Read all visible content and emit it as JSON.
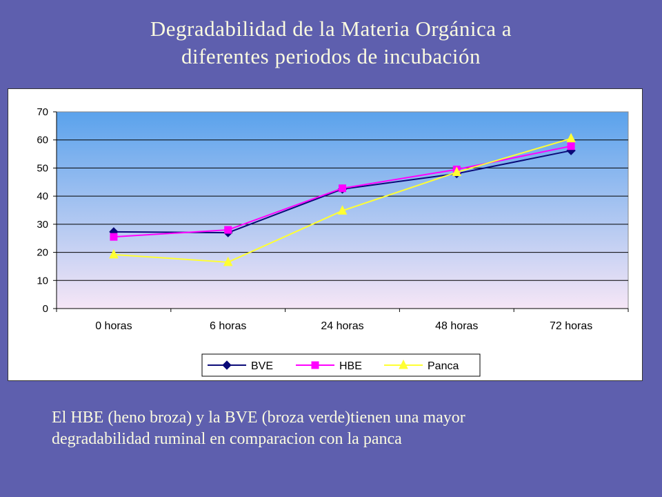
{
  "title": {
    "line1": "Degradabilidad de la Materia Orgánica a",
    "line2": "diferentes periodos de incubación"
  },
  "caption": {
    "line1": "El HBE (heno broza) y la BVE (broza verde)tienen una mayor",
    "line2": "degradabilidad ruminal en comparacion con la panca"
  },
  "colors": {
    "background": "#5e5fae",
    "plot_top": "#5aa2ec",
    "plot_bottom": "#f6e6f6",
    "BVE": "#0a0a78",
    "HBE": "#ff00ff",
    "Panca": "#ffff33"
  },
  "chart_data": {
    "type": "line",
    "categories": [
      "0 horas",
      "6 horas",
      "24 horas",
      "48 horas",
      "72 horas"
    ],
    "ylim": [
      0,
      70
    ],
    "yticks": [
      0,
      10,
      20,
      30,
      40,
      50,
      60,
      70
    ],
    "grid": true,
    "legend_position": "bottom",
    "series": [
      {
        "name": "BVE",
        "marker": "diamond",
        "values": [
          27.3,
          27.0,
          42.5,
          48.0,
          56.2
        ]
      },
      {
        "name": "HBE",
        "marker": "square",
        "values": [
          25.5,
          28.0,
          42.8,
          49.5,
          57.8
        ]
      },
      {
        "name": "Panca",
        "marker": "triangle",
        "values": [
          19.2,
          16.5,
          34.8,
          48.5,
          60.5
        ]
      }
    ]
  }
}
